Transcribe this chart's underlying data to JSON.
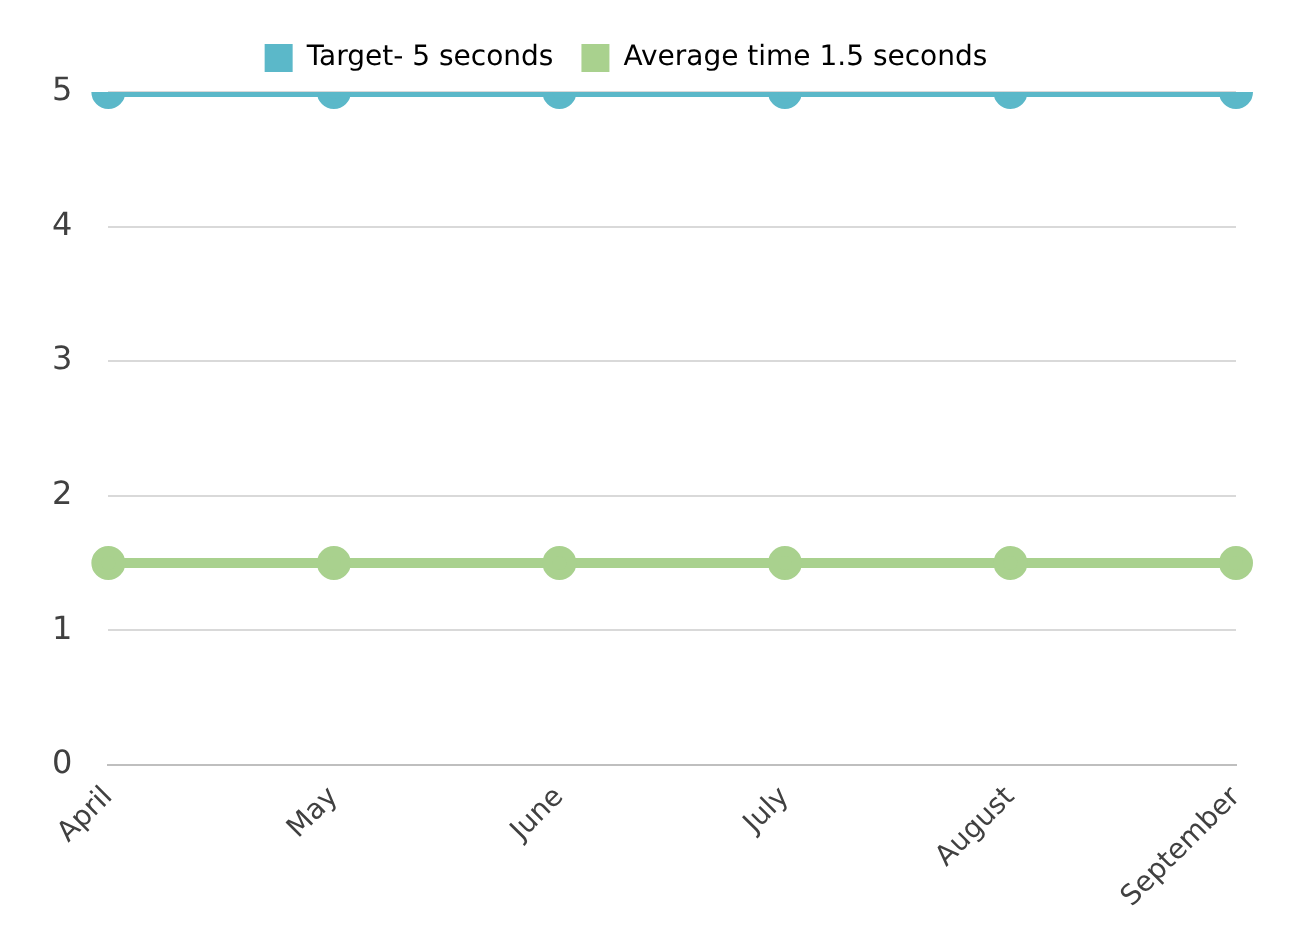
{
  "chart_data": {
    "type": "line",
    "categories": [
      "April",
      "May",
      "June",
      "July",
      "August",
      "September"
    ],
    "series": [
      {
        "name": "Target- 5 seconds",
        "color": "#5bb8c9",
        "values": [
          5,
          5,
          5,
          5,
          5,
          5
        ]
      },
      {
        "name": "Average time 1.5 seconds",
        "color": "#a9d18e",
        "values": [
          1.5,
          1.5,
          1.5,
          1.5,
          1.5,
          1.5
        ]
      }
    ],
    "ylim": [
      0,
      5
    ],
    "yticks": [
      0,
      1,
      2,
      3,
      4,
      5
    ],
    "grid": "y",
    "legend": "top",
    "marker": "circle",
    "line_style": "solid"
  }
}
